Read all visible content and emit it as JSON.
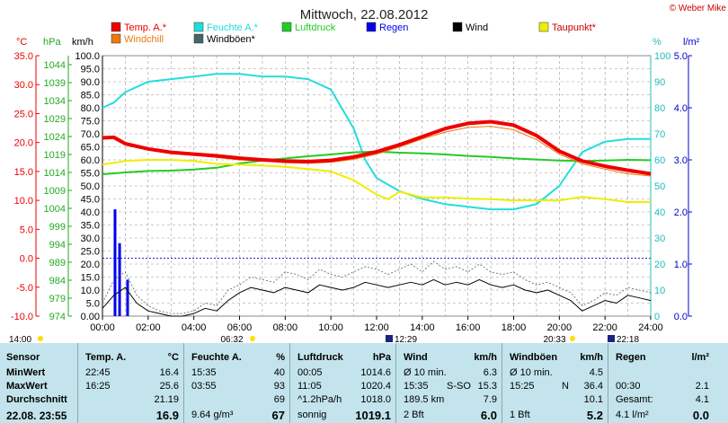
{
  "title": "Mittwoch, 22.08.2012",
  "copyright": "© Weber Mike",
  "unit_labels": {
    "temp": "°C",
    "press": "hPa",
    "wind": "km/h",
    "hum": "%",
    "rain": "l/m²"
  },
  "axis_ticks": {
    "temp": [
      "35.0",
      "30.0",
      "25.0",
      "20.0",
      "15.0",
      "10.0",
      "5.0",
      "0.0",
      "-5.0",
      "-10.0"
    ],
    "press": [
      "1044",
      "1039",
      "1034",
      "1029",
      "1024",
      "1019",
      "1014",
      "1009",
      "1004",
      "999",
      "994",
      "989",
      "984",
      "979",
      "974"
    ],
    "wind": [
      "100.0",
      "95.0",
      "90.0",
      "85.0",
      "80.0",
      "75.0",
      "70.0",
      "65.0",
      "60.0",
      "55.0",
      "50.0",
      "45.0",
      "40.0",
      "35.0",
      "30.0",
      "25.0",
      "20.0",
      "15.0",
      "10.0",
      "5.0",
      "0.00"
    ],
    "hum": [
      "100",
      "90",
      "80",
      "70",
      "60",
      "50",
      "40",
      "30",
      "20",
      "10",
      "0"
    ],
    "rain": [
      "5.0",
      "4.0",
      "3.0",
      "2.0",
      "1.0",
      "0.0"
    ],
    "time": [
      "00:00",
      "02:00",
      "04:00",
      "06:00",
      "08:00",
      "10:00",
      "12:00",
      "14:00",
      "16:00",
      "18:00",
      "20:00",
      "22:00",
      "24:00"
    ]
  },
  "sun_marks": {
    "sunrise_prev": "14:00",
    "sunrise": "06:32",
    "noon": "12:29",
    "sunset": "20:33",
    "moon": "22:18"
  },
  "legend": [
    {
      "label": "Temp. A.*",
      "color": "#ee0000"
    },
    {
      "label": "Feuchte A.*",
      "color": "#22dddd"
    },
    {
      "label": "Luftdruck",
      "color": "#22cc22"
    },
    {
      "label": "Regen",
      "color": "#0000ee"
    },
    {
      "label": "Wind",
      "color": "#000000"
    },
    {
      "label": "Taupunkt*",
      "color": "#eeee00"
    },
    {
      "label": "Windchill",
      "color": "#ee7711"
    },
    {
      "label": "Windböen*",
      "color": "#446666"
    }
  ],
  "chart_data": {
    "type": "line",
    "x_unit": "hour",
    "xlim": [
      0,
      24
    ],
    "series": [
      {
        "name": "Temp. A.*",
        "axis": "temp",
        "color": "#ee0000",
        "x": [
          0,
          0.5,
          1,
          2,
          3,
          4,
          5,
          6,
          7,
          8,
          9,
          10,
          11,
          12,
          13,
          14,
          15,
          16,
          17,
          18,
          19,
          20,
          21,
          22,
          23,
          24
        ],
        "y": [
          20.8,
          20.9,
          19.8,
          18.9,
          18.3,
          18.0,
          17.7,
          17.3,
          17.0,
          16.8,
          16.7,
          16.9,
          17.5,
          18.4,
          19.6,
          21.0,
          22.4,
          23.3,
          23.6,
          23.0,
          21.2,
          18.5,
          16.8,
          15.9,
          15.2,
          14.6
        ]
      },
      {
        "name": "Windchill",
        "axis": "temp",
        "color": "#ee7711",
        "x": [
          0,
          0.5,
          1,
          2,
          3,
          4,
          5,
          6,
          7,
          8,
          9,
          10,
          11,
          12,
          13,
          14,
          15,
          16,
          17,
          18,
          19,
          20,
          21,
          22,
          23,
          24
        ],
        "y": [
          20.8,
          20.6,
          19.6,
          18.7,
          18.1,
          17.8,
          17.4,
          17.0,
          16.8,
          16.5,
          16.4,
          16.6,
          17.1,
          18.0,
          19.2,
          20.6,
          21.8,
          22.6,
          22.8,
          22.2,
          20.5,
          18.0,
          16.3,
          15.4,
          14.6,
          14.2
        ]
      },
      {
        "name": "Feuchte A.*",
        "axis": "hum",
        "color": "#22dddd",
        "x": [
          0,
          0.5,
          1,
          1.5,
          2,
          3,
          4,
          5,
          6,
          7,
          8,
          9,
          10,
          11,
          11.5,
          12,
          13,
          14,
          15,
          16,
          17,
          18,
          19,
          20,
          21,
          22,
          23,
          24
        ],
        "y": [
          80,
          82,
          86,
          88,
          90,
          91,
          92,
          93,
          93,
          92,
          92,
          91,
          87,
          72,
          60,
          53,
          48,
          45,
          43,
          42,
          41,
          41,
          43,
          50,
          63,
          67,
          68,
          68
        ]
      },
      {
        "name": "Luftdruck",
        "axis": "press",
        "color": "#22cc22",
        "x": [
          0,
          1,
          2,
          3,
          4,
          5,
          6,
          7,
          8,
          9,
          10,
          11,
          12,
          13,
          14,
          15,
          16,
          17,
          18,
          19,
          20,
          21,
          22,
          23,
          24
        ],
        "y": [
          1013.5,
          1014.0,
          1014.4,
          1014.5,
          1014.8,
          1015.3,
          1016.5,
          1017.3,
          1017.9,
          1018.5,
          1019.0,
          1019.6,
          1019.8,
          1019.5,
          1019.3,
          1019.0,
          1018.6,
          1018.3,
          1017.9,
          1017.6,
          1017.3,
          1017.2,
          1017.3,
          1017.5,
          1017.4
        ]
      },
      {
        "name": "Taupunkt*",
        "axis": "temp",
        "color": "#eeee00",
        "x": [
          0,
          1,
          2,
          3,
          4,
          5,
          6,
          7,
          8,
          9,
          10,
          11,
          12,
          12.5,
          13,
          14,
          15,
          16,
          17,
          18,
          19,
          20,
          21,
          22,
          23,
          24
        ],
        "y": [
          16.2,
          16.8,
          17.0,
          17.0,
          16.8,
          16.3,
          16.2,
          16.0,
          15.8,
          15.4,
          15.0,
          13.5,
          11.0,
          10.2,
          11.5,
          10.5,
          10.5,
          10.3,
          10.2,
          10.0,
          10.0,
          10.0,
          10.6,
          10.2,
          9.7,
          9.7
        ]
      },
      {
        "name": "Wind",
        "axis": "wind",
        "color": "#000000",
        "x": [
          0,
          0.5,
          1,
          1.5,
          2,
          2.5,
          3,
          3.5,
          4,
          4.5,
          5,
          5.5,
          6,
          6.5,
          7,
          7.5,
          8,
          8.5,
          9,
          9.5,
          10,
          10.5,
          11,
          11.5,
          12,
          12.5,
          13,
          13.5,
          14,
          14.5,
          15,
          15.5,
          16,
          16.5,
          17,
          17.5,
          18,
          18.5,
          19,
          19.5,
          20,
          20.5,
          21,
          21.5,
          22,
          22.5,
          23,
          23.5,
          24
        ],
        "y": [
          3,
          8,
          11,
          5,
          2,
          1,
          0,
          0,
          1,
          3,
          2,
          6,
          9,
          11,
          10,
          9,
          11,
          10,
          9,
          12,
          11,
          10,
          11,
          13,
          12,
          11,
          12,
          13,
          12,
          14,
          12,
          13,
          12,
          14,
          12,
          11,
          12,
          10,
          9,
          10,
          8,
          6,
          2,
          4,
          6,
          5,
          8,
          7,
          6
        ]
      },
      {
        "name": "Windböen*",
        "axis": "wind",
        "color": "#446666",
        "x": [
          0,
          0.5,
          1,
          1.5,
          2,
          2.5,
          3,
          3.5,
          4,
          4.5,
          5,
          5.5,
          6,
          6.5,
          7,
          7.5,
          8,
          8.5,
          9,
          9.5,
          10,
          10.5,
          11,
          11.5,
          12,
          12.5,
          13,
          13.5,
          14,
          14.5,
          15,
          15.5,
          16,
          16.5,
          17,
          17.5,
          18,
          18.5,
          19,
          19.5,
          20,
          20.5,
          21,
          21.5,
          22,
          22.5,
          23,
          23.5,
          24
        ],
        "y": [
          5,
          14,
          17,
          8,
          4,
          2,
          1,
          1,
          2,
          5,
          4,
          10,
          12,
          15,
          14,
          13,
          17,
          16,
          14,
          18,
          16,
          15,
          17,
          19,
          18,
          16,
          18,
          20,
          17,
          21,
          18,
          19,
          17,
          20,
          17,
          16,
          17,
          14,
          12,
          13,
          11,
          9,
          4,
          6,
          9,
          8,
          11,
          10,
          9
        ]
      }
    ],
    "rain_bars": {
      "name": "Regen",
      "axis": "rain",
      "color": "#0000ee",
      "x": [
        0.55,
        0.75,
        1.1
      ],
      "y": [
        2.05,
        1.4,
        0.7
      ]
    }
  },
  "stats": {
    "sensor": {
      "header": "Sensor",
      "rows": [
        "MinWert",
        "MaxWert",
        "Durchschnitt"
      ],
      "date": "22.08. 23:55"
    },
    "temp": {
      "header": "Temp. A.",
      "unit": "°C",
      "rows": [
        [
          "22:45",
          "16.4"
        ],
        [
          "16:25",
          "25.6"
        ],
        [
          "",
          "21.19"
        ]
      ],
      "current": "16.9"
    },
    "hum": {
      "header": "Feuchte A.",
      "unit": "%",
      "rows": [
        [
          "15:35",
          "40"
        ],
        [
          "03:55",
          "93"
        ],
        [
          "",
          "69"
        ]
      ],
      "current_label": "9.64 g/m³",
      "current": "67"
    },
    "press": {
      "header": "Luftdruck",
      "unit": "hPa",
      "rows": [
        [
          "00:05",
          "1014.6"
        ],
        [
          "11:05",
          "1020.4"
        ],
        [
          "^1.2hPa/h",
          "1018.0"
        ]
      ],
      "current_label": "sonnig",
      "current": "1019.1"
    },
    "wind": {
      "header": "Wind",
      "unit": "km/h",
      "rows": [
        [
          "Ø 10 min.",
          "",
          "6.3"
        ],
        [
          "15:35",
          "S-SO",
          "15.3"
        ],
        [
          "189.5 km",
          "",
          "7.9"
        ]
      ],
      "current_label": "2 Bft",
      "current": "6.0"
    },
    "gust": {
      "header": "Windböen",
      "unit": "km/h",
      "rows": [
        [
          "Ø 10 min.",
          "",
          "4.5"
        ],
        [
          "15:25",
          "N",
          "36.4"
        ],
        [
          "",
          "",
          "10.1"
        ]
      ],
      "current_label": "1 Bft",
      "current": "5.2"
    },
    "rain": {
      "header": "Regen",
      "unit": "l/m²",
      "rows": [
        [
          "",
          ""
        ],
        [
          "00:30",
          "2.1"
        ],
        [
          "Gesamt:",
          "4.1"
        ]
      ],
      "current_label": "4.1 l/m²",
      "current": "0.0"
    }
  }
}
